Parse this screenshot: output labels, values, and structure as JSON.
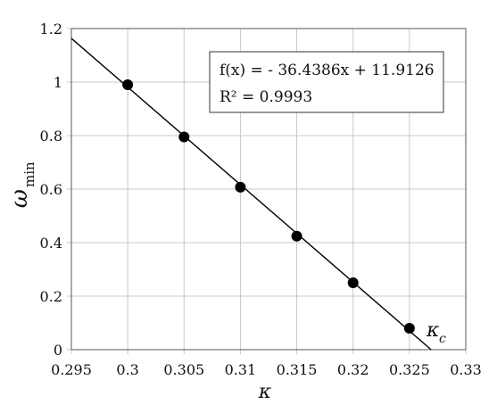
{
  "chart_data": {
    "type": "scatter",
    "title": "",
    "xlabel": "κ",
    "ylabel": "ω",
    "ylabel_sub": "min",
    "xlim": [
      0.295,
      0.33
    ],
    "ylim": [
      0,
      1.2
    ],
    "xticks": [
      0.295,
      0.3,
      0.305,
      0.31,
      0.315,
      0.32,
      0.325,
      0.33
    ],
    "xtick_labels": [
      "0.295",
      "0.3",
      "0.305",
      "0.31",
      "0.315",
      "0.32",
      "0.325",
      "0.33"
    ],
    "yticks": [
      0,
      0.2,
      0.4,
      0.6,
      0.8,
      1,
      1.2
    ],
    "ytick_labels": [
      "0",
      "0.2",
      "0.4",
      "0.6",
      "0.8",
      "1",
      "1.2"
    ],
    "grid": true,
    "series": [
      {
        "x": [
          0.3,
          0.305,
          0.31,
          0.315,
          0.32,
          0.325
        ],
        "y": [
          0.99,
          0.795,
          0.607,
          0.424,
          0.25,
          0.08
        ],
        "color": "#000000"
      }
    ],
    "trendline": {
      "slope": -36.4386,
      "intercept": 11.9126,
      "color": "#000000"
    },
    "fit_box": {
      "equation": "f(x) =  - 36.4386x + 11.9126",
      "r_squared": "R² = 0.9993"
    },
    "annotations": [
      {
        "text": "κ",
        "sub": "c",
        "x": 0.326999
      }
    ]
  }
}
